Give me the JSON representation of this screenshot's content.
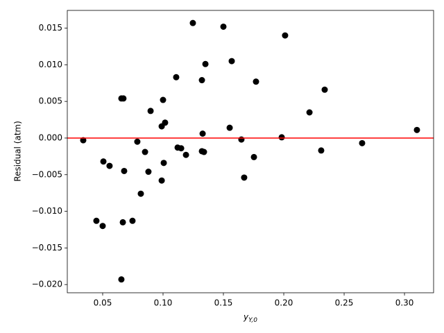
{
  "chart_data": {
    "type": "scatter",
    "x_label": {
      "main": "y",
      "sub": "Y,0"
    },
    "y_label": "Residual (atm)",
    "xlim": [
      0.0207,
      0.3241
    ],
    "ylim": [
      -0.02112,
      0.01742
    ],
    "xticks": [
      0.05,
      {
        "value": 0.1,
        "label": "0.10"
      },
      0.15,
      {
        "value": 0.2,
        "label": "0.20"
      },
      0.25,
      {
        "value": 0.3,
        "label": "0.30"
      }
    ],
    "yticks": [
      {
        "value": -0.02,
        "label": "−0.020"
      },
      {
        "value": -0.015,
        "label": "−0.015"
      },
      {
        "value": -0.01,
        "label": "−0.010"
      },
      {
        "value": -0.005,
        "label": "−0.005"
      },
      {
        "value": 0,
        "label": "0.000"
      },
      0.005,
      {
        "value": 0.01,
        "label": "0.010"
      },
      0.015
    ],
    "reference_line": {
      "y": 0,
      "color": "#ff0000"
    },
    "color": "#000000",
    "x": [
      0.0339,
      0.0448,
      0.05,
      0.0506,
      0.0557,
      0.0655,
      0.0672,
      0.0655,
      0.0667,
      0.0678,
      0.0747,
      0.0787,
      0.0816,
      0.0851,
      0.0879,
      0.0897,
      0.0989,
      0.0989,
      0.1,
      0.1006,
      0.1017,
      0.1109,
      0.1121,
      0.115,
      0.119,
      0.1247,
      0.1322,
      0.1322,
      0.1328,
      0.1339,
      0.1351,
      0.15,
      0.1552,
      0.1569,
      0.1649,
      0.1672,
      0.1753,
      0.177,
      0.1983,
      0.2011,
      0.2213,
      0.231,
      0.2339,
      0.2649,
      0.3103
    ],
    "values": [
      -0.0003,
      -0.0113,
      -0.012,
      -0.0032,
      -0.0038,
      0.0054,
      0.0054,
      -0.0193,
      -0.0115,
      -0.0045,
      -0.0113,
      -0.0005,
      -0.0076,
      -0.0019,
      -0.0046,
      0.0037,
      -0.0058,
      0.0016,
      0.0052,
      -0.0034,
      0.0021,
      0.0083,
      -0.0013,
      -0.0014,
      -0.0023,
      0.0157,
      0.0079,
      -0.0018,
      0.0006,
      -0.0019,
      0.0101,
      0.0152,
      0.0014,
      0.0105,
      -0.0002,
      -0.0054,
      -0.0026,
      0.0077,
      0.0001,
      0.014,
      0.0035,
      -0.0017,
      0.0066,
      -0.0007,
      0.0011
    ]
  }
}
